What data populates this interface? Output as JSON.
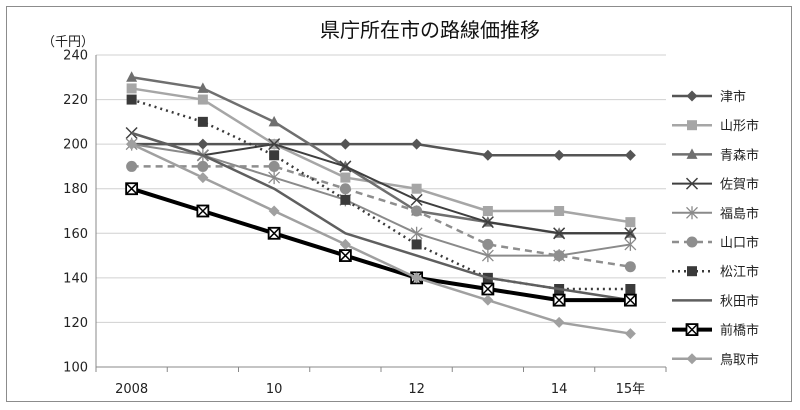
{
  "chart_data": {
    "type": "line",
    "title": "県庁所在市の路線価推移",
    "ylabel": "（千円）",
    "xlabel": "",
    "ylim": [
      100,
      240
    ],
    "yticks": [
      100,
      120,
      140,
      160,
      180,
      200,
      220,
      240
    ],
    "x": [
      2008,
      2009,
      2010,
      2011,
      2012,
      2013,
      2014,
      2015
    ],
    "xticks": [
      {
        "x": 2008,
        "label": "2008"
      },
      {
        "x": 2010,
        "label": "10"
      },
      {
        "x": 2012,
        "label": "12"
      },
      {
        "x": 2014,
        "label": "14"
      },
      {
        "x": 2015,
        "label": "15年"
      }
    ],
    "grid": "horizontal",
    "legend": "right",
    "series": [
      {
        "name": "津市",
        "values": [
          200,
          200,
          200,
          200,
          200,
          195,
          195,
          195
        ],
        "color": "#555555",
        "marker": "diamond",
        "width": 2.5,
        "dash": ""
      },
      {
        "name": "山形市",
        "values": [
          225,
          220,
          200,
          185,
          180,
          170,
          170,
          165
        ],
        "color": "#a6a6a6",
        "marker": "square",
        "width": 2.5,
        "dash": ""
      },
      {
        "name": "青森市",
        "values": [
          230,
          225,
          210,
          190,
          170,
          165,
          160,
          160
        ],
        "color": "#6f6f6f",
        "marker": "triangle",
        "width": 2.5,
        "dash": ""
      },
      {
        "name": "佐賀市",
        "values": [
          205,
          195,
          200,
          190,
          175,
          165,
          160,
          160
        ],
        "color": "#3f3f3f",
        "marker": "x",
        "width": 2,
        "dash": ""
      },
      {
        "name": "福島市",
        "values": [
          200,
          195,
          185,
          175,
          160,
          150,
          150,
          155
        ],
        "color": "#8a8a8a",
        "marker": "star",
        "width": 2,
        "dash": ""
      },
      {
        "name": "山口市",
        "values": [
          190,
          190,
          190,
          180,
          170,
          155,
          150,
          145
        ],
        "color": "#8e8e8e",
        "marker": "circle",
        "width": 2.5,
        "dash": "7,5"
      },
      {
        "name": "松江市",
        "values": [
          220,
          210,
          195,
          175,
          155,
          140,
          135,
          135
        ],
        "color": "#3a3a3a",
        "marker": "square",
        "width": 2.5,
        "dash": "2,4"
      },
      {
        "name": "秋田市",
        "values": [
          205,
          195,
          180,
          160,
          150,
          140,
          135,
          130
        ],
        "color": "#5f5f5f",
        "marker": "none",
        "width": 2.5,
        "dash": ""
      },
      {
        "name": "前橋市",
        "values": [
          180,
          170,
          160,
          150,
          140,
          135,
          130,
          130
        ],
        "color": "#000000",
        "marker": "boxx",
        "width": 4,
        "dash": ""
      },
      {
        "name": "鳥取市",
        "values": [
          200,
          185,
          170,
          155,
          140,
          130,
          120,
          115
        ],
        "color": "#a0a0a0",
        "marker": "diamond",
        "width": 2.5,
        "dash": ""
      }
    ]
  }
}
